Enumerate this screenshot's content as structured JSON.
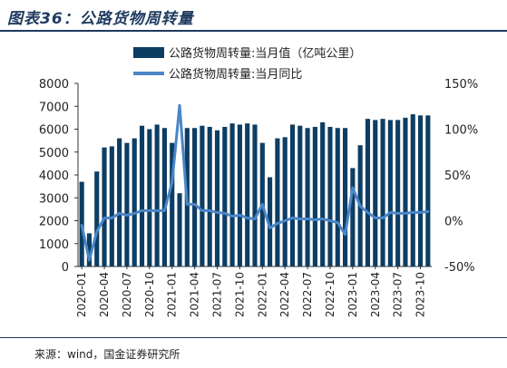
{
  "title": "图表36：公路货物周转量",
  "source": "来源：wind，国金证券研究所",
  "colors": {
    "bar": "#0d3d62",
    "line": "#4a86c8"
  },
  "chart_data": {
    "type": "bar",
    "categories": [
      "2020-01",
      "2020-02",
      "2020-03",
      "2020-04",
      "2020-05",
      "2020-06",
      "2020-07",
      "2020-08",
      "2020-09",
      "2020-10",
      "2020-11",
      "2020-12",
      "2021-01",
      "2021-02",
      "2021-03",
      "2021-04",
      "2021-05",
      "2021-06",
      "2021-07",
      "2021-08",
      "2021-09",
      "2021-10",
      "2021-11",
      "2021-12",
      "2022-01",
      "2022-02",
      "2022-03",
      "2022-04",
      "2022-05",
      "2022-06",
      "2022-07",
      "2022-08",
      "2022-09",
      "2022-10",
      "2022-11",
      "2022-12",
      "2023-01",
      "2023-02",
      "2023-03",
      "2023-04",
      "2023-05",
      "2023-06",
      "2023-07",
      "2023-08",
      "2023-09",
      "2023-10",
      "2023-11"
    ],
    "x_tick_labels": [
      "2020-01",
      "2020-04",
      "2020-07",
      "2020-10",
      "2021-01",
      "2021-04",
      "2021-07",
      "2021-10",
      "2022-01",
      "2022-04",
      "2022-07",
      "2022-10",
      "2023-01",
      "2023-04",
      "2023-07",
      "2023-10"
    ],
    "series": [
      {
        "name": "公路货物周转量:当月值（亿吨公里）",
        "type": "bar",
        "axis": "left",
        "values": [
          3700,
          1450,
          4150,
          5200,
          5250,
          5600,
          5400,
          5600,
          6150,
          6000,
          6200,
          6050,
          5400,
          3200,
          6050,
          6050,
          6150,
          6100,
          5950,
          6100,
          6250,
          6200,
          6250,
          6200,
          5400,
          3900,
          5600,
          5650,
          6200,
          6150,
          6050,
          6100,
          6300,
          6100,
          6050,
          6050,
          4300,
          5300,
          6450,
          6400,
          6450,
          6400,
          6400,
          6500,
          6650,
          6600,
          6600
        ]
      },
      {
        "name": "公路货物周转量:当月同比",
        "type": "line",
        "axis": "right",
        "values": [
          -5,
          -43,
          -12,
          3,
          3,
          8,
          6,
          8,
          11,
          11,
          11,
          11,
          42,
          126,
          18,
          18,
          11,
          11,
          9,
          8,
          5,
          6,
          3,
          2,
          18,
          -8,
          -3,
          0,
          3,
          2,
          2,
          1,
          2,
          0,
          -2,
          -15,
          36,
          16,
          9,
          3,
          3,
          9,
          8,
          8,
          9,
          9,
          10
        ]
      }
    ],
    "y_left": {
      "min": 0,
      "max": 8000,
      "ticks": [
        0,
        1000,
        2000,
        3000,
        4000,
        5000,
        6000,
        7000,
        8000
      ]
    },
    "y_right": {
      "min": -50,
      "max": 150,
      "ticks": [
        "150%",
        "100%",
        "50%",
        "0%",
        "-50%"
      ]
    },
    "legend": "top-right"
  }
}
